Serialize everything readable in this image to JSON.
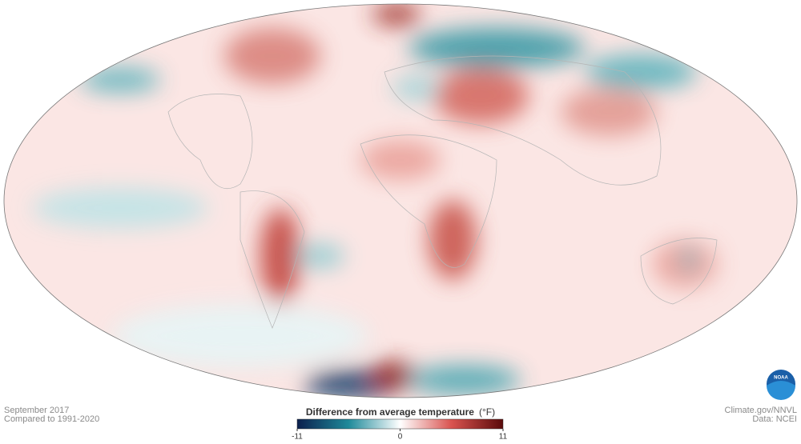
{
  "caption": {
    "date": "September 2017",
    "baseline": "Compared to 1991-2020"
  },
  "credits": {
    "source": "Climate.gov/NNVL",
    "data": "Data: NCEI",
    "logo": "NOAA"
  },
  "legend": {
    "title": "Difference from average temperature",
    "unit": "(°F)",
    "range": [
      -11,
      11
    ],
    "ticks": [
      -11,
      0,
      11
    ],
    "colors": [
      "#0b1f4d",
      "#1f8a9a",
      "#ffffff",
      "#d9534f",
      "#5a0a0a"
    ]
  }
}
